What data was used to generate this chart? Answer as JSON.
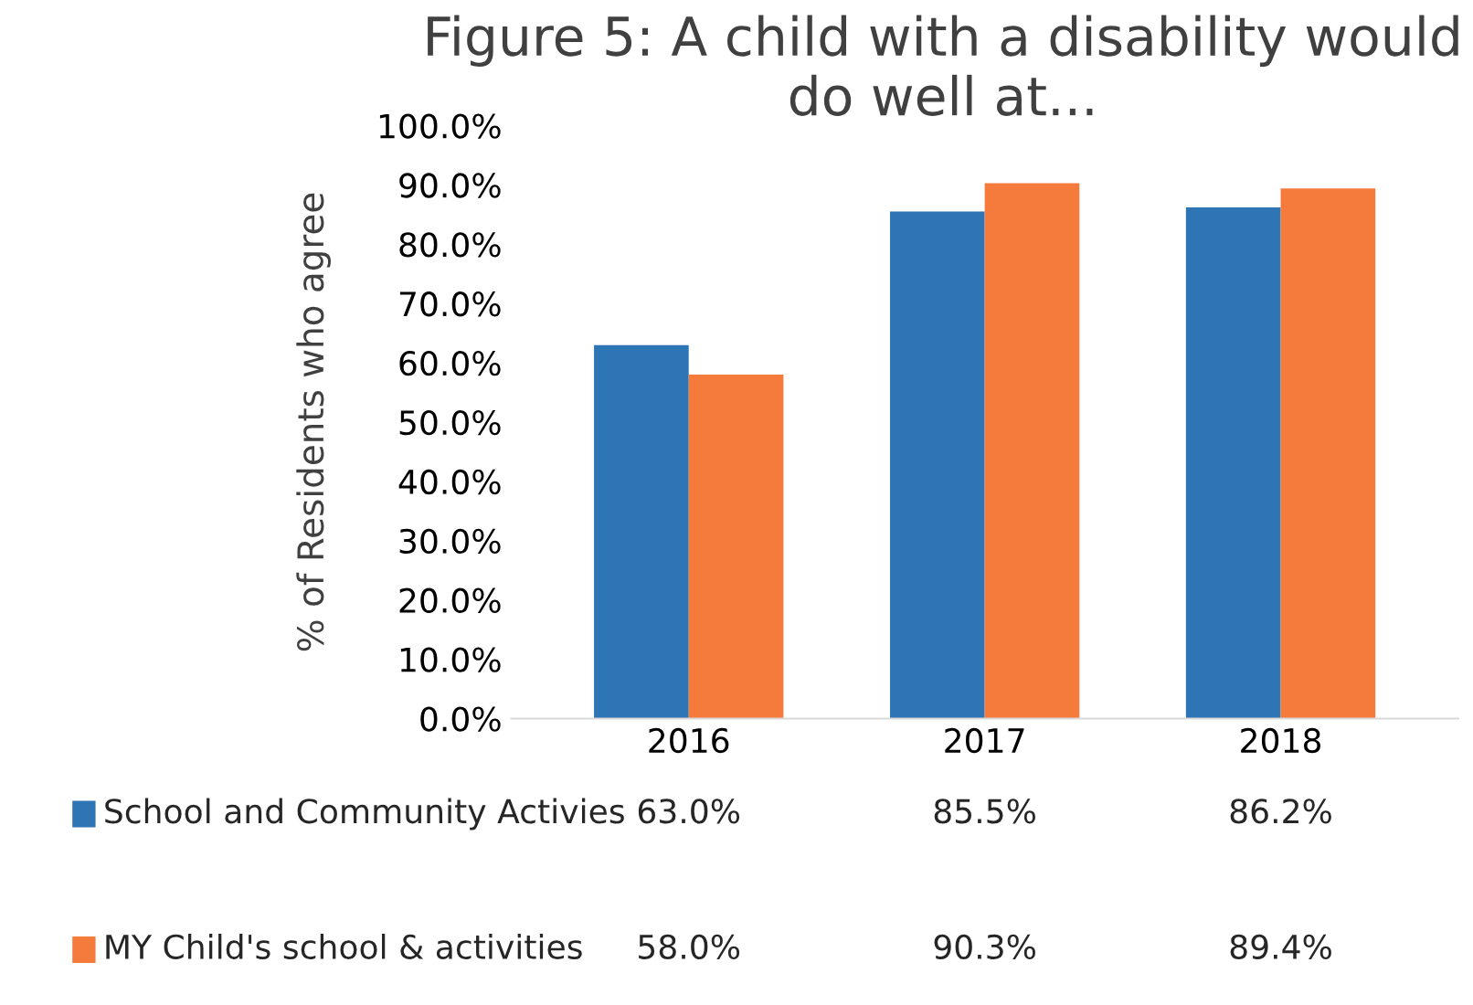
{
  "chart_data": {
    "type": "bar",
    "title": "Figure 5: A child with a disability would do well at...",
    "ylabel": "% of Residents who agree",
    "categories": [
      "2016",
      "2017",
      "2018"
    ],
    "series": [
      {
        "name": "School and Community Activies",
        "color": "#2e75b6",
        "values": [
          63.0,
          85.5,
          86.2
        ],
        "value_labels": [
          "63.0%",
          "85.5%",
          "86.2%"
        ]
      },
      {
        "name": "MY Child's school & activities",
        "color": "#f47b3b",
        "values": [
          58.0,
          90.3,
          89.4
        ],
        "value_labels": [
          "58.0%",
          "90.3%",
          "89.4%"
        ]
      }
    ],
    "ylim": [
      0,
      100
    ],
    "yticks": [
      {
        "value": 0,
        "label": "0.0%"
      },
      {
        "value": 10,
        "label": "10.0%"
      },
      {
        "value": 20,
        "label": "20.0%"
      },
      {
        "value": 30,
        "label": "30.0%"
      },
      {
        "value": 40,
        "label": "40.0%"
      },
      {
        "value": 50,
        "label": "50.0%"
      },
      {
        "value": 60,
        "label": "60.0%"
      },
      {
        "value": 70,
        "label": "70.0%"
      },
      {
        "value": 80,
        "label": "80.0%"
      },
      {
        "value": 90,
        "label": "90.0%"
      },
      {
        "value": 100,
        "label": "100.0%"
      }
    ],
    "grid": false,
    "legend": "bottom"
  }
}
